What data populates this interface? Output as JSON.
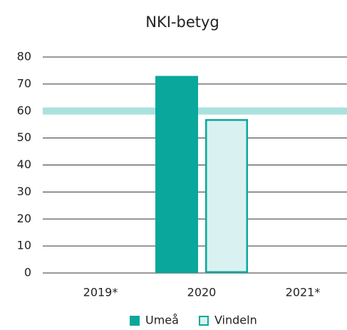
{
  "chart_data": {
    "type": "bar",
    "title": "NKI-betyg",
    "categories": [
      "2019*",
      "2020",
      "2021*"
    ],
    "series": [
      {
        "name": "Umeå",
        "color": "#0aa89c",
        "values": [
          null,
          73,
          null
        ]
      },
      {
        "name": "Vindeln",
        "color": "#0aa89c",
        "fill": "#daf1f1",
        "values": [
          null,
          57,
          null
        ]
      }
    ],
    "reference_line": 60,
    "reference_color": "#a9e2dd",
    "ylim": [
      0,
      80
    ],
    "yticks": [
      0,
      10,
      20,
      30,
      40,
      50,
      60,
      70,
      80
    ],
    "grid": true,
    "legend": "bottom"
  }
}
